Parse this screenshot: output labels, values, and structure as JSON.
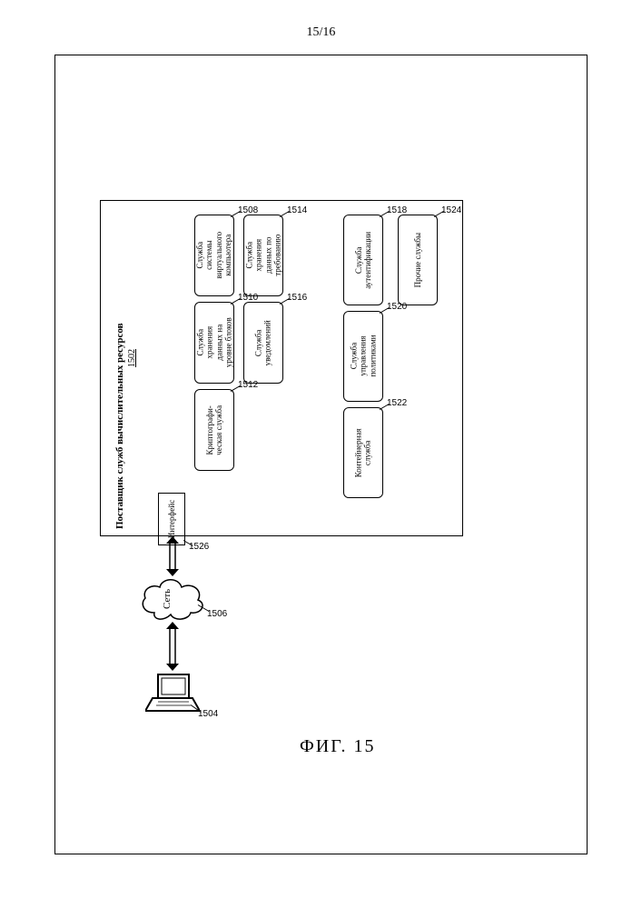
{
  "page": {
    "number": "15/16"
  },
  "figure_label": "ФИГ. 15",
  "laptop_ref": "1504",
  "network": {
    "label": "Сеть",
    "ref": "1506"
  },
  "interface": {
    "label": "Интерфейс",
    "ref": "1526"
  },
  "provider": {
    "title": "Поставщик служб вычислительных ресурсов",
    "ref": "1502"
  },
  "services_left": [
    {
      "label": "Служба\nсистемы\nвиртуального\nкомпьютера",
      "ref": "1508"
    },
    {
      "label": "Служба\nхранения\nданных на\nуровне блоков",
      "ref": "1510"
    },
    {
      "label": "Криптографи-\nческая служба",
      "ref": "1512"
    },
    {
      "label": "Служба\nхранения\nданных по\nтребованию",
      "ref": "1514"
    },
    {
      "label": "Служба\nуведомлений",
      "ref": "1516"
    }
  ],
  "services_right": [
    {
      "label": "Служба\nаутентификации",
      "ref": "1518"
    },
    {
      "label": "Служба\nуправления\nполитиками",
      "ref": "1520"
    },
    {
      "label": "Контейнерная\nслужба",
      "ref": "1522"
    },
    {
      "label": "Прочие службы",
      "ref": "1524"
    }
  ],
  "colors": {
    "line": "#000000",
    "bg": "#ffffff"
  }
}
